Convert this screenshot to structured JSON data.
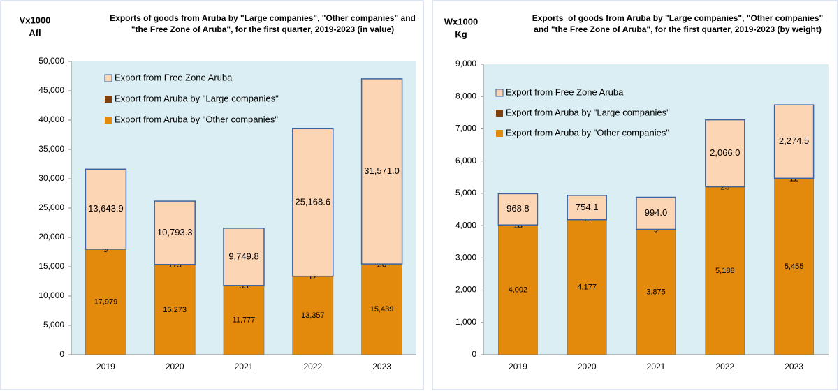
{
  "chart_data": [
    {
      "type": "bar",
      "stacked": true,
      "title": "Exports of goods from Aruba by \"Large companies\", \"Other companies\" and \"the Free Zone of Aruba\", for the first quarter, 2019-2023 (in value)",
      "ylabel": [
        "Vx1000",
        "Afl"
      ],
      "categories": [
        "2019",
        "2020",
        "2021",
        "2022",
        "2023"
      ],
      "series": [
        {
          "name": "Export from Aruba by \"Other companies\"",
          "color": "#E3890C",
          "values": [
            17979,
            15273,
            11777,
            13357,
            15439
          ],
          "value_labels": [
            "17,979",
            "15,273",
            "11,777",
            "13,357",
            "15,439"
          ]
        },
        {
          "name": "Export from Aruba by \"Large companies\"",
          "color": "#7F3F0F",
          "values": [
            9,
            115,
            35,
            12,
            26
          ]
        },
        {
          "name": "Export from Free Zone Aruba",
          "color": "#FCD5B4",
          "values": [
            13643.9,
            10793.3,
            9749.8,
            25168.6,
            31571.0
          ],
          "value_labels": [
            "13,643.9",
            "10,793.3",
            "9,749.8",
            "25,168.6",
            "31,571.0"
          ]
        }
      ],
      "ylim": [
        0,
        50000
      ],
      "yticks": [
        0,
        {
          "value": 5000,
          "label": "5,000"
        },
        {
          "value": 10000,
          "label": "10,000"
        },
        {
          "value": 15000,
          "label": "15,000"
        },
        {
          "value": 20000,
          "label": "20,000"
        },
        {
          "value": 25000,
          "label": "25,000"
        },
        {
          "value": 30000,
          "label": "30,000"
        },
        {
          "value": 35000,
          "label": "35,000"
        },
        {
          "value": 40000,
          "label": "40,000"
        },
        {
          "value": 45000,
          "label": "45,000"
        },
        {
          "value": 50000,
          "label": "50,000"
        }
      ],
      "legend": "upper left"
    },
    {
      "type": "bar",
      "stacked": true,
      "title": "Exports  of goods from Aruba by \"Large companies\", \"Other companies\" and \"the Free Zone of Aruba\", for the first quarter, 2019-2023 (by weight)",
      "ylabel": [
        "Wx1000",
        "Kg"
      ],
      "categories": [
        "2019",
        "2020",
        "2021",
        "2022",
        "2023"
      ],
      "series": [
        {
          "name": "Export from Aruba by \"Other companies\"",
          "color": "#E3890C",
          "values": [
            4002,
            4177,
            3875,
            5188,
            5455
          ],
          "value_labels": [
            "4,002",
            "4,177",
            "3,875",
            "5,188",
            "5,455"
          ]
        },
        {
          "name": "Export from Aruba by \"Large companies\"",
          "color": "#7F3F0F",
          "values": [
            18,
            4,
            9,
            23,
            12
          ]
        },
        {
          "name": "Export from Free Zone Aruba",
          "color": "#FCD5B4",
          "values": [
            968.8,
            754.1,
            994.0,
            2066.0,
            2274.5
          ],
          "value_labels": [
            "968.8",
            "754.1",
            "994.0",
            "2,066.0",
            "2,274.5"
          ]
        }
      ],
      "ylim": [
        0,
        9000
      ],
      "yticks": [
        0,
        {
          "value": 1000,
          "label": "1,000"
        },
        {
          "value": 2000,
          "label": "2,000"
        },
        {
          "value": 3000,
          "label": "3,000"
        },
        {
          "value": 4000,
          "label": "4,000"
        },
        {
          "value": 5000,
          "label": "5,000"
        },
        {
          "value": 6000,
          "label": "6,000"
        },
        {
          "value": 7000,
          "label": "7,000"
        },
        {
          "value": 8000,
          "label": "8,000"
        },
        {
          "value": 9000,
          "label": "9,000"
        }
      ],
      "legend": "upper left"
    }
  ]
}
